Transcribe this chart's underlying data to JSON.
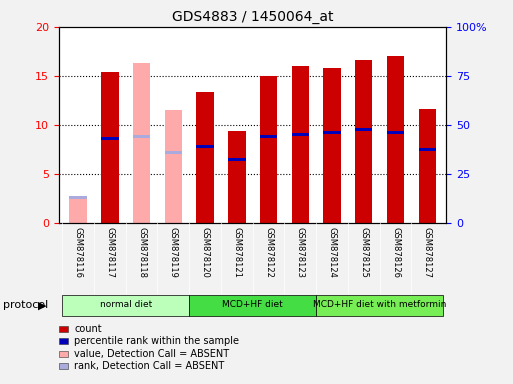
{
  "title": "GDS4883 / 1450064_at",
  "samples": [
    "GSM878116",
    "GSM878117",
    "GSM878118",
    "GSM878119",
    "GSM878120",
    "GSM878121",
    "GSM878122",
    "GSM878123",
    "GSM878124",
    "GSM878125",
    "GSM878126",
    "GSM878127"
  ],
  "count_values": [
    null,
    15.4,
    null,
    null,
    13.4,
    9.4,
    15.0,
    16.0,
    15.8,
    16.6,
    17.0,
    11.6
  ],
  "count_absent": [
    2.5,
    null,
    16.3,
    11.5,
    null,
    null,
    null,
    null,
    null,
    null,
    null,
    null
  ],
  "percentile_values": [
    null,
    8.6,
    null,
    null,
    7.8,
    6.5,
    8.8,
    9.0,
    9.2,
    9.5,
    9.2,
    7.5
  ],
  "percentile_absent": [
    2.6,
    null,
    8.8,
    7.2,
    null,
    null,
    null,
    null,
    null,
    null,
    null,
    null
  ],
  "ylim_left": [
    0,
    20
  ],
  "ylim_right": [
    0,
    100
  ],
  "yticks_left": [
    0,
    5,
    10,
    15,
    20
  ],
  "yticks_right": [
    0,
    25,
    50,
    75,
    100
  ],
  "yticklabels_left": [
    "0",
    "5",
    "10",
    "15",
    "20"
  ],
  "yticklabels_right": [
    "0",
    "25",
    "50",
    "75",
    "100%"
  ],
  "count_color": "#cc0000",
  "count_absent_color": "#ffaaaa",
  "percentile_color": "#0000bb",
  "percentile_absent_color": "#aaaadd",
  "plot_bg_color": "#ffffff",
  "fig_bg_color": "#f2f2f2",
  "label_bg_color": "#cccccc",
  "protocol_groups": [
    {
      "label": "normal diet",
      "start": 0,
      "end": 3,
      "color": "#bbffbb"
    },
    {
      "label": "MCD+HF diet",
      "start": 4,
      "end": 7,
      "color": "#44dd44"
    },
    {
      "label": "MCD+HF diet with metformin",
      "start": 8,
      "end": 11,
      "color": "#66ee66"
    }
  ],
  "legend_items": [
    {
      "label": "count",
      "color": "#cc0000"
    },
    {
      "label": "percentile rank within the sample",
      "color": "#0000bb"
    },
    {
      "label": "value, Detection Call = ABSENT",
      "color": "#ffaaaa"
    },
    {
      "label": "rank, Detection Call = ABSENT",
      "color": "#aaaadd"
    }
  ],
  "bar_width": 0.55
}
